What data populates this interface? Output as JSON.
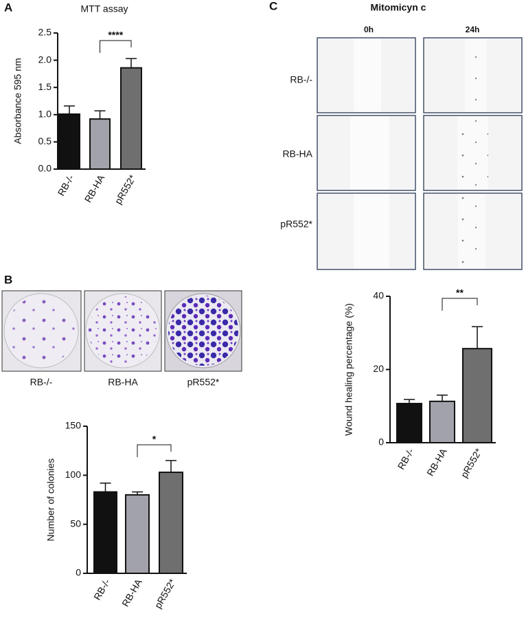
{
  "chart_data": [
    {
      "type": "bar",
      "panel": "A",
      "title": "MTT assay",
      "ylabel": "Absorbance 595 nm",
      "categories": [
        "RB-/-",
        "RB-HA",
        "pR552*"
      ],
      "values": [
        1.01,
        0.92,
        1.86
      ],
      "errors": [
        0.15,
        0.15,
        0.17
      ],
      "colors": [
        "#111111",
        "#a2a2aa",
        "#6f6f6f"
      ],
      "annotation": "****",
      "ylim": [
        0,
        2.5
      ],
      "yticks": [
        {
          "value": 0,
          "label": "0.0"
        },
        0.5,
        {
          "value": 1,
          "label": "1.0"
        },
        1.5,
        {
          "value": 2,
          "label": "2.0"
        },
        2.5
      ]
    },
    {
      "type": "bar",
      "panel": "B",
      "ylabel": "Number of colonies",
      "categories": [
        "RB-/-",
        "RB-HA",
        "pR552*"
      ],
      "values": [
        83,
        80,
        103
      ],
      "errors": [
        9,
        3,
        12
      ],
      "colors": [
        "#111111",
        "#a2a2aa",
        "#6f6f6f"
      ],
      "annotation": "*",
      "ylim": [
        0,
        150
      ],
      "yticks": [
        0,
        50,
        100,
        150
      ]
    },
    {
      "type": "bar",
      "panel": "C",
      "ylabel": "Wound healing percentage (%)",
      "categories": [
        "RB-/-",
        "RB-HA",
        "pR552*"
      ],
      "values": [
        10.7,
        11.3,
        25.7
      ],
      "errors": [
        1.1,
        1.7,
        6
      ],
      "colors": [
        "#111111",
        "#a2a2aa",
        "#6f6f6f"
      ],
      "annotation": "**",
      "ylim": [
        0,
        40
      ],
      "yticks": [
        0,
        20,
        40
      ]
    }
  ],
  "colony_images": {
    "labels": [
      "RB-/-",
      "RB-HA",
      "pR552*"
    ]
  },
  "wound_images": {
    "title": "Mitomicyn c",
    "columns": [
      "0h",
      "24h"
    ],
    "rows": [
      "RB-/-",
      "RB-HA",
      "pR552*"
    ]
  }
}
